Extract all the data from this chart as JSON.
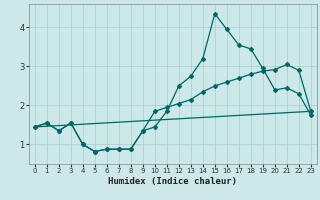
{
  "xlabel": "Humidex (Indice chaleur)",
  "bg_color": "#cce8e8",
  "grid_color": "#aacccc",
  "line_color": "#006666",
  "xlim": [
    -0.5,
    23.5
  ],
  "ylim": [
    0.5,
    4.6
  ],
  "yticks": [
    1,
    2,
    3,
    4
  ],
  "xticks": [
    0,
    1,
    2,
    3,
    4,
    5,
    6,
    7,
    8,
    9,
    10,
    11,
    12,
    13,
    14,
    15,
    16,
    17,
    18,
    19,
    20,
    21,
    22,
    23
  ],
  "series1_x": [
    0,
    1,
    2,
    3,
    4,
    5,
    6,
    7,
    8,
    9,
    10,
    11,
    12,
    13,
    14,
    15,
    16,
    17,
    18,
    19,
    20,
    21,
    22,
    23
  ],
  "series1_y": [
    1.45,
    1.55,
    1.35,
    1.55,
    1.0,
    0.82,
    0.88,
    0.88,
    0.88,
    1.35,
    1.45,
    1.85,
    2.5,
    2.75,
    3.2,
    4.35,
    3.95,
    3.55,
    3.45,
    2.95,
    2.4,
    2.45,
    2.3,
    1.75
  ],
  "series2_x": [
    0,
    1,
    2,
    3,
    4,
    5,
    6,
    7,
    8,
    9,
    10,
    11,
    12,
    13,
    14,
    15,
    16,
    17,
    18,
    19,
    20,
    21,
    22,
    23
  ],
  "series2_y": [
    1.45,
    1.55,
    1.35,
    1.55,
    1.0,
    0.82,
    0.88,
    0.88,
    0.88,
    1.35,
    1.85,
    1.95,
    2.05,
    2.15,
    2.35,
    2.5,
    2.6,
    2.7,
    2.8,
    2.88,
    2.92,
    3.05,
    2.9,
    1.85
  ],
  "series3_x": [
    0,
    23
  ],
  "series3_y": [
    1.45,
    1.85
  ]
}
